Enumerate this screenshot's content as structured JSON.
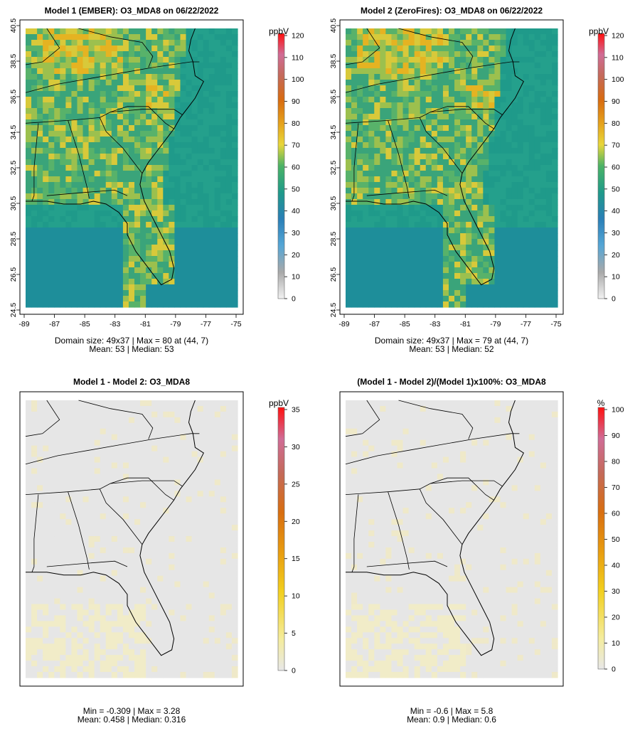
{
  "panels": [
    {
      "title": "Model 1 (EMBER): O3_MDA8 on 06/22/2022",
      "unit": "ppbV",
      "colorbar_ticks": [
        "120",
        "110",
        "100",
        "90",
        "80",
        "70",
        "60",
        "50",
        "40",
        "30",
        "20",
        "10",
        "0"
      ],
      "stats_line1": "Domain size: 49x37 | Max = 80 at (44, 7)",
      "stats_line2": "Mean: 53 |  Median: 53",
      "x_ticks": [
        "-89",
        "-87",
        "-85",
        "-83",
        "-81",
        "-79",
        "-77",
        "-75"
      ],
      "y_ticks": [
        "40.5",
        "38.5",
        "36.5",
        "34.5",
        "32.5",
        "30.5",
        "28.5",
        "26.5",
        "24.5"
      ]
    },
    {
      "title": "Model 2 (ZeroFires): O3_MDA8 on 06/22/2022",
      "unit": "ppbV",
      "colorbar_ticks": [
        "120",
        "110",
        "100",
        "90",
        "80",
        "70",
        "60",
        "50",
        "40",
        "30",
        "20",
        "10",
        "0"
      ],
      "stats_line1": "Domain size: 49x37 | Max = 79 at (44, 7)",
      "stats_line2": "Mean: 53 |  Median: 52",
      "x_ticks": [
        "-89",
        "-87",
        "-85",
        "-83",
        "-81",
        "-79",
        "-77",
        "-75"
      ],
      "y_ticks": [
        "40.5",
        "38.5",
        "36.5",
        "34.5",
        "32.5",
        "30.5",
        "28.5",
        "26.5",
        "24.5"
      ]
    },
    {
      "title": "Model 1 - Model 2: O3_MDA8",
      "unit": "ppbV",
      "colorbar_ticks": [
        "35",
        "30",
        "25",
        "20",
        "15",
        "10",
        "5",
        "0"
      ],
      "stats_line1": "Min = -0.309 | Max = 3.28",
      "stats_line2": "Mean: 0.458 |  Median: 0.316"
    },
    {
      "title": "(Model 1 - Model 2)/(Model 1)x100%: O3_MDA8",
      "unit": "%",
      "colorbar_ticks": [
        "100",
        "90",
        "80",
        "70",
        "60",
        "50",
        "40",
        "30",
        "20",
        "10",
        "0"
      ],
      "stats_line1": "Min = -0.6 | Max = 5.8",
      "stats_line2": "Mean: 0.9 |  Median: 0.6"
    }
  ],
  "colors": {
    "ocean_abs": "#1f9a8a",
    "diff_background": "#e6e6e6",
    "diff_light": "#f3efc4"
  }
}
